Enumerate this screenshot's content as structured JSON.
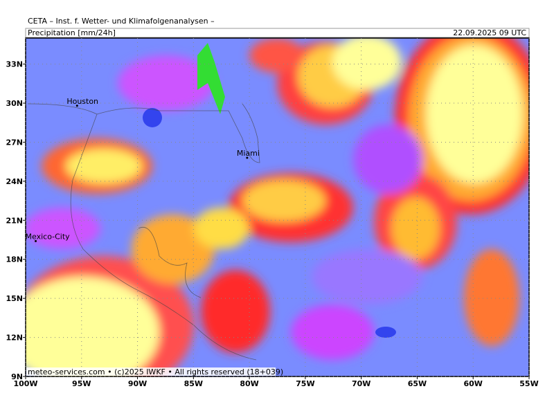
{
  "header": {
    "institute": "CETA – Inst. f. Wetter- und Klimafolgenanalysen –",
    "product": "Precipitation [mm/24h]",
    "valid_time": "22.09.2025 09 UTC"
  },
  "map": {
    "lon_range": [
      -100,
      -55
    ],
    "lat_range": [
      9,
      35
    ],
    "lon_ticks": [
      {
        "value": -100,
        "label": "100W"
      },
      {
        "value": -95,
        "label": "95W"
      },
      {
        "value": -90,
        "label": "90W"
      },
      {
        "value": -85,
        "label": "85W"
      },
      {
        "value": -80,
        "label": "80W"
      },
      {
        "value": -75,
        "label": "75W"
      },
      {
        "value": -70,
        "label": "70W"
      },
      {
        "value": -65,
        "label": "65W"
      },
      {
        "value": -60,
        "label": "60W"
      },
      {
        "value": -55,
        "label": "55W"
      }
    ],
    "lat_ticks": [
      {
        "value": 9,
        "label": "9N"
      },
      {
        "value": 12,
        "label": "12N"
      },
      {
        "value": 15,
        "label": "15N"
      },
      {
        "value": 18,
        "label": "18N"
      },
      {
        "value": 21,
        "label": "21N"
      },
      {
        "value": 24,
        "label": "24N"
      },
      {
        "value": 27,
        "label": "27N"
      },
      {
        "value": 30,
        "label": "30N"
      },
      {
        "value": 33,
        "label": "33N"
      }
    ],
    "cities": [
      {
        "name": "Houston",
        "lon": -95.4,
        "lat": 29.8
      },
      {
        "name": "Miami",
        "lon": -80.2,
        "lat": 25.8
      },
      {
        "name": "Mexico-City",
        "lon": -99.1,
        "lat": 19.4
      }
    ]
  },
  "footer": "meteo-services.com • (c)2025 IWKF • All rights reserved (18+039)"
}
